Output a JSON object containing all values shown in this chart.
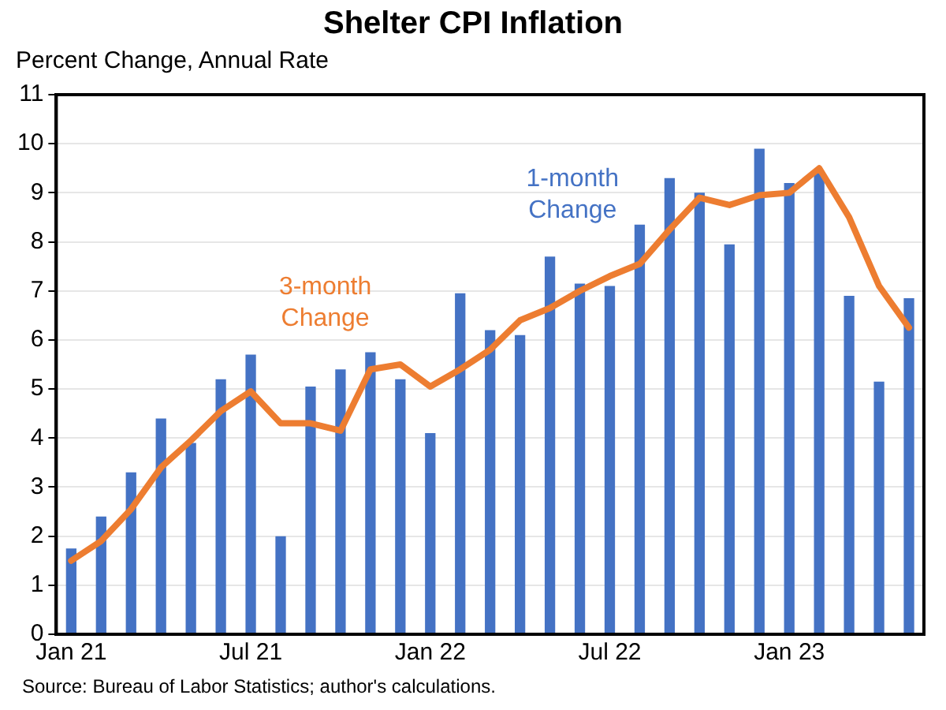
{
  "chart_data": {
    "type": "bar",
    "title": "Shelter CPI Inflation",
    "ylabel": "Percent Change, Annual Rate",
    "categories": [
      "Jan 21",
      null,
      null,
      null,
      null,
      null,
      "Jul 21",
      null,
      null,
      null,
      null,
      null,
      "Jan 22",
      null,
      null,
      null,
      null,
      null,
      "Jul 22",
      null,
      null,
      null,
      null,
      null,
      "Jan 23",
      null,
      null,
      null,
      null
    ],
    "series": [
      {
        "name": "1-month Change",
        "color": "#4472c4",
        "values": [
          1.75,
          2.4,
          3.3,
          4.4,
          3.9,
          5.2,
          5.7,
          2.0,
          5.05,
          5.4,
          5.75,
          5.2,
          4.1,
          6.95,
          6.2,
          6.1,
          7.7,
          7.15,
          7.1,
          8.35,
          9.3,
          9.0,
          7.95,
          9.9,
          9.2,
          9.4,
          6.9,
          5.15,
          6.85
        ]
      },
      {
        "name": "3-month Change",
        "type": "line",
        "color": "#ed7d31",
        "values": [
          1.5,
          1.9,
          2.55,
          3.4,
          3.95,
          4.55,
          4.95,
          4.3,
          4.3,
          4.15,
          5.4,
          5.5,
          5.05,
          5.4,
          5.8,
          6.4,
          6.65,
          7.0,
          7.3,
          7.55,
          8.25,
          8.9,
          8.75,
          8.95,
          9.0,
          9.5,
          8.5,
          7.1,
          6.25
        ]
      }
    ],
    "ylim": [
      0,
      11
    ],
    "yticks": [
      0,
      1,
      2,
      3,
      4,
      5,
      6,
      7,
      8,
      9,
      10,
      11
    ],
    "grid": "y",
    "legend": false,
    "marker": "none",
    "annotations": [
      "Source: Bureau of Labor Statistics; author's calculations."
    ]
  }
}
